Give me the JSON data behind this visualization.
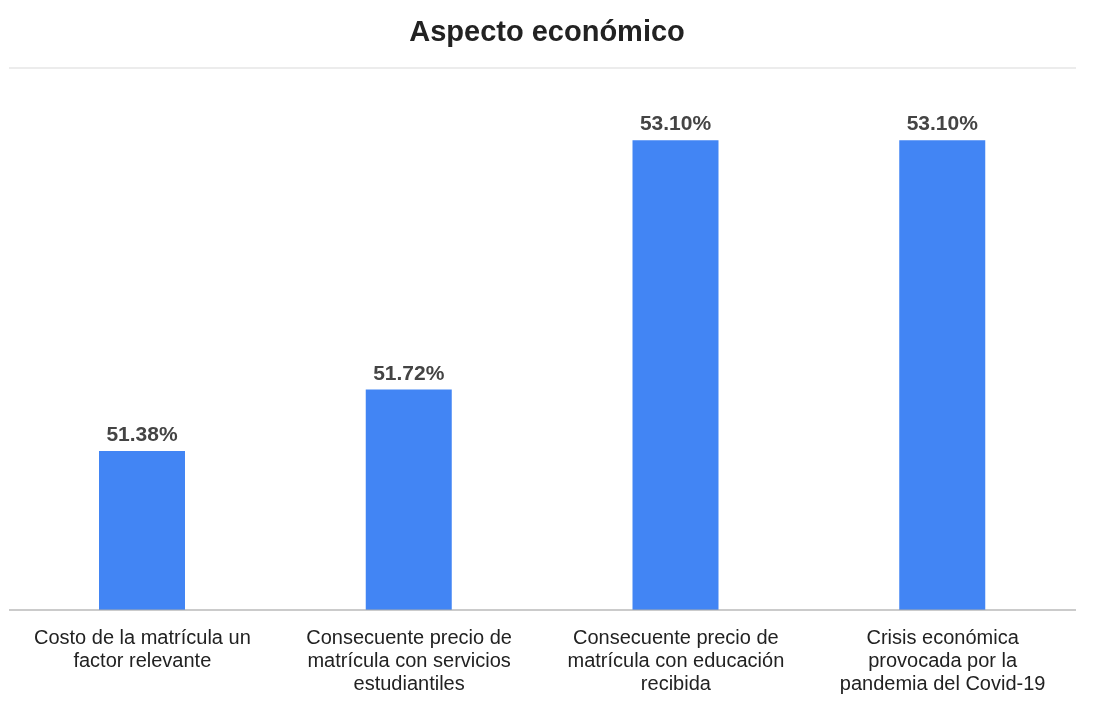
{
  "chart_data": {
    "type": "bar",
    "title": "Aspecto económico",
    "categories": [
      "Costo de la matrícula un factor relevante",
      "Consecuente precio de matrícula con servicios estudiantiles",
      "Consecuente precio de matrícula con educación recibida",
      "Crisis económica provocada por la pandemia del Covid-19"
    ],
    "values": [
      51.38,
      51.72,
      53.1,
      53.1
    ],
    "value_labels": [
      "51.38%",
      "51.72%",
      "53.10%",
      "53.10%"
    ],
    "color": "#4285f4",
    "ylim": [
      50.5,
      53.5
    ],
    "tick_labels": "x",
    "grid": "y"
  }
}
